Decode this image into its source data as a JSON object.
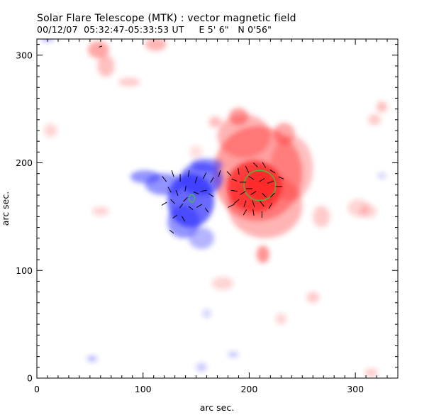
{
  "header": {
    "title": "Solar Flare Telescope (MTK) : vector magnetic field",
    "subtitle": "00/12/07  05:32:47-05:33:53 UT     E 5' 6\"   N 0'56\""
  },
  "chart_data": {
    "type": "heatmap",
    "description_colors": {
      "positive": "#ff2a2a",
      "negative": "#2a2aff",
      "contour": "#3fbf3f",
      "vector": "#000000"
    },
    "xlabel": "arc sec.",
    "ylabel": "arc sec.",
    "xlim": [
      0,
      340
    ],
    "ylim": [
      0,
      315
    ],
    "xticks": [
      0,
      100,
      200,
      300
    ],
    "yticks": [
      0,
      100,
      200,
      300
    ],
    "grid": false,
    "positive_blobs": [
      {
        "x": 210,
        "y": 180,
        "rx": 14,
        "ry": 14,
        "a": 1.0
      },
      {
        "x": 205,
        "y": 178,
        "rx": 26,
        "ry": 24,
        "a": 0.85
      },
      {
        "x": 208,
        "y": 190,
        "rx": 42,
        "ry": 44,
        "a": 0.45
      },
      {
        "x": 215,
        "y": 160,
        "rx": 35,
        "ry": 30,
        "a": 0.35
      },
      {
        "x": 195,
        "y": 225,
        "rx": 25,
        "ry": 20,
        "a": 0.35
      },
      {
        "x": 240,
        "y": 195,
        "rx": 20,
        "ry": 30,
        "a": 0.3
      },
      {
        "x": 233,
        "y": 227,
        "rx": 10,
        "ry": 10,
        "a": 0.4
      },
      {
        "x": 190,
        "y": 243,
        "rx": 9,
        "ry": 8,
        "a": 0.45
      },
      {
        "x": 213,
        "y": 115,
        "rx": 6,
        "ry": 8,
        "a": 0.5
      },
      {
        "x": 58,
        "y": 305,
        "rx": 10,
        "ry": 8,
        "a": 0.4
      },
      {
        "x": 65,
        "y": 290,
        "rx": 8,
        "ry": 10,
        "a": 0.3
      },
      {
        "x": 112,
        "y": 310,
        "rx": 10,
        "ry": 6,
        "a": 0.35
      },
      {
        "x": 87,
        "y": 275,
        "rx": 10,
        "ry": 4,
        "a": 0.25
      },
      {
        "x": 168,
        "y": 238,
        "rx": 6,
        "ry": 5,
        "a": 0.3
      },
      {
        "x": 268,
        "y": 150,
        "rx": 8,
        "ry": 10,
        "a": 0.25
      },
      {
        "x": 303,
        "y": 158,
        "rx": 10,
        "ry": 8,
        "a": 0.2
      },
      {
        "x": 318,
        "y": 240,
        "rx": 6,
        "ry": 5,
        "a": 0.25
      },
      {
        "x": 325,
        "y": 252,
        "rx": 5,
        "ry": 5,
        "a": 0.3
      },
      {
        "x": 312,
        "y": 155,
        "rx": 8,
        "ry": 6,
        "a": 0.2
      },
      {
        "x": 150,
        "y": 210,
        "rx": 6,
        "ry": 6,
        "a": 0.15
      },
      {
        "x": 60,
        "y": 155,
        "rx": 8,
        "ry": 4,
        "a": 0.2
      },
      {
        "x": 175,
        "y": 88,
        "rx": 10,
        "ry": 6,
        "a": 0.2
      },
      {
        "x": 260,
        "y": 75,
        "rx": 6,
        "ry": 5,
        "a": 0.25
      },
      {
        "x": 230,
        "y": 55,
        "rx": 5,
        "ry": 5,
        "a": 0.2
      },
      {
        "x": 315,
        "y": 5,
        "rx": 6,
        "ry": 4,
        "a": 0.25
      },
      {
        "x": 13,
        "y": 230,
        "rx": 6,
        "ry": 6,
        "a": 0.2
      }
    ],
    "negative_blobs": [
      {
        "x": 145,
        "y": 165,
        "rx": 22,
        "ry": 25,
        "a": 0.7
      },
      {
        "x": 138,
        "y": 145,
        "rx": 15,
        "ry": 15,
        "a": 0.5
      },
      {
        "x": 155,
        "y": 185,
        "rx": 20,
        "ry": 15,
        "a": 0.6
      },
      {
        "x": 120,
        "y": 180,
        "rx": 18,
        "ry": 10,
        "a": 0.5
      },
      {
        "x": 102,
        "y": 187,
        "rx": 14,
        "ry": 6,
        "a": 0.5
      },
      {
        "x": 160,
        "y": 198,
        "rx": 15,
        "ry": 6,
        "a": 0.5
      },
      {
        "x": 155,
        "y": 130,
        "rx": 12,
        "ry": 10,
        "a": 0.35
      },
      {
        "x": 10,
        "y": 315,
        "rx": 6,
        "ry": 3,
        "a": 0.3
      },
      {
        "x": 155,
        "y": 10,
        "rx": 5,
        "ry": 4,
        "a": 0.25
      },
      {
        "x": 52,
        "y": 18,
        "rx": 5,
        "ry": 3,
        "a": 0.3
      },
      {
        "x": 185,
        "y": 22,
        "rx": 5,
        "ry": 3,
        "a": 0.25
      },
      {
        "x": 160,
        "y": 60,
        "rx": 4,
        "ry": 4,
        "a": 0.2
      },
      {
        "x": 325,
        "y": 188,
        "rx": 4,
        "ry": 3,
        "a": 0.2
      }
    ],
    "contours": [
      {
        "x": 210,
        "y": 179,
        "rx": 15,
        "ry": 14
      },
      {
        "x": 146,
        "y": 167,
        "rx": 2.5,
        "ry": 3.5
      }
    ],
    "vectors": [
      {
        "x": 120,
        "y": 185,
        "dx": 4,
        "dy": -5
      },
      {
        "x": 128,
        "y": 190,
        "dx": 2,
        "dy": -6
      },
      {
        "x": 135,
        "y": 186,
        "dx": 0,
        "dy": -7
      },
      {
        "x": 143,
        "y": 190,
        "dx": -1,
        "dy": -6
      },
      {
        "x": 150,
        "y": 184,
        "dx": -2,
        "dy": -6
      },
      {
        "x": 158,
        "y": 188,
        "dx": -3,
        "dy": -6
      },
      {
        "x": 165,
        "y": 184,
        "dx": -3,
        "dy": -5
      },
      {
        "x": 125,
        "y": 175,
        "dx": 3,
        "dy": -5
      },
      {
        "x": 132,
        "y": 172,
        "dx": 2,
        "dy": -5
      },
      {
        "x": 140,
        "y": 176,
        "dx": -1,
        "dy": -5
      },
      {
        "x": 150,
        "y": 172,
        "dx": -5,
        "dy": 2
      },
      {
        "x": 157,
        "y": 174,
        "dx": -6,
        "dy": -1
      },
      {
        "x": 164,
        "y": 170,
        "dx": -5,
        "dy": 3
      },
      {
        "x": 120,
        "y": 162,
        "dx": 5,
        "dy": 3
      },
      {
        "x": 128,
        "y": 164,
        "dx": 4,
        "dy": -4
      },
      {
        "x": 136,
        "y": 160,
        "dx": -3,
        "dy": -4
      },
      {
        "x": 145,
        "y": 158,
        "dx": -4,
        "dy": 3
      },
      {
        "x": 153,
        "y": 160,
        "dx": -5,
        "dy": -3
      },
      {
        "x": 160,
        "y": 156,
        "dx": -3,
        "dy": 4
      },
      {
        "x": 130,
        "y": 150,
        "dx": -4,
        "dy": -3
      },
      {
        "x": 138,
        "y": 148,
        "dx": 3,
        "dy": -5
      },
      {
        "x": 127,
        "y": 136,
        "dx": 4,
        "dy": -3
      },
      {
        "x": 140,
        "y": 166,
        "dx": -4,
        "dy": -4
      },
      {
        "x": 172,
        "y": 190,
        "dx": -2,
        "dy": -6
      },
      {
        "x": 181,
        "y": 190,
        "dx": -4,
        "dy": 4
      },
      {
        "x": 190,
        "y": 192,
        "dx": 1,
        "dy": -6
      },
      {
        "x": 198,
        "y": 194,
        "dx": 3,
        "dy": -6
      },
      {
        "x": 206,
        "y": 198,
        "dx": 4,
        "dy": -4
      },
      {
        "x": 214,
        "y": 198,
        "dx": 3,
        "dy": -5
      },
      {
        "x": 222,
        "y": 192,
        "dx": 5,
        "dy": -3
      },
      {
        "x": 186,
        "y": 184,
        "dx": -5,
        "dy": 2
      },
      {
        "x": 194,
        "y": 182,
        "dx": -6,
        "dy": 0
      },
      {
        "x": 202,
        "y": 186,
        "dx": -5,
        "dy": 3
      },
      {
        "x": 212,
        "y": 184,
        "dx": 5,
        "dy": 3
      },
      {
        "x": 220,
        "y": 182,
        "dx": 6,
        "dy": 2
      },
      {
        "x": 228,
        "y": 178,
        "dx": 6,
        "dy": 0
      },
      {
        "x": 186,
        "y": 174,
        "dx": -6,
        "dy": 1
      },
      {
        "x": 194,
        "y": 172,
        "dx": -5,
        "dy": -3
      },
      {
        "x": 204,
        "y": 172,
        "dx": 5,
        "dy": 3
      },
      {
        "x": 214,
        "y": 170,
        "dx": 4,
        "dy": -4
      },
      {
        "x": 222,
        "y": 170,
        "dx": 4,
        "dy": 4
      },
      {
        "x": 188,
        "y": 164,
        "dx": -5,
        "dy": -4
      },
      {
        "x": 196,
        "y": 162,
        "dx": -2,
        "dy": -6
      },
      {
        "x": 204,
        "y": 162,
        "dx": 2,
        "dy": -6
      },
      {
        "x": 212,
        "y": 162,
        "dx": 4,
        "dy": -5
      },
      {
        "x": 220,
        "y": 160,
        "dx": 3,
        "dy": 5
      },
      {
        "x": 196,
        "y": 154,
        "dx": -3,
        "dy": -5
      },
      {
        "x": 204,
        "y": 154,
        "dx": 1,
        "dy": -6
      },
      {
        "x": 212,
        "y": 152,
        "dx": 0,
        "dy": -6
      },
      {
        "x": 200,
        "y": 176,
        "dx": -6,
        "dy": 0
      },
      {
        "x": 230,
        "y": 186,
        "dx": 5,
        "dy": -2
      },
      {
        "x": 183,
        "y": 160,
        "dx": -6,
        "dy": -3
      },
      {
        "x": 60,
        "y": 308,
        "dx": 3,
        "dy": 1
      }
    ]
  }
}
